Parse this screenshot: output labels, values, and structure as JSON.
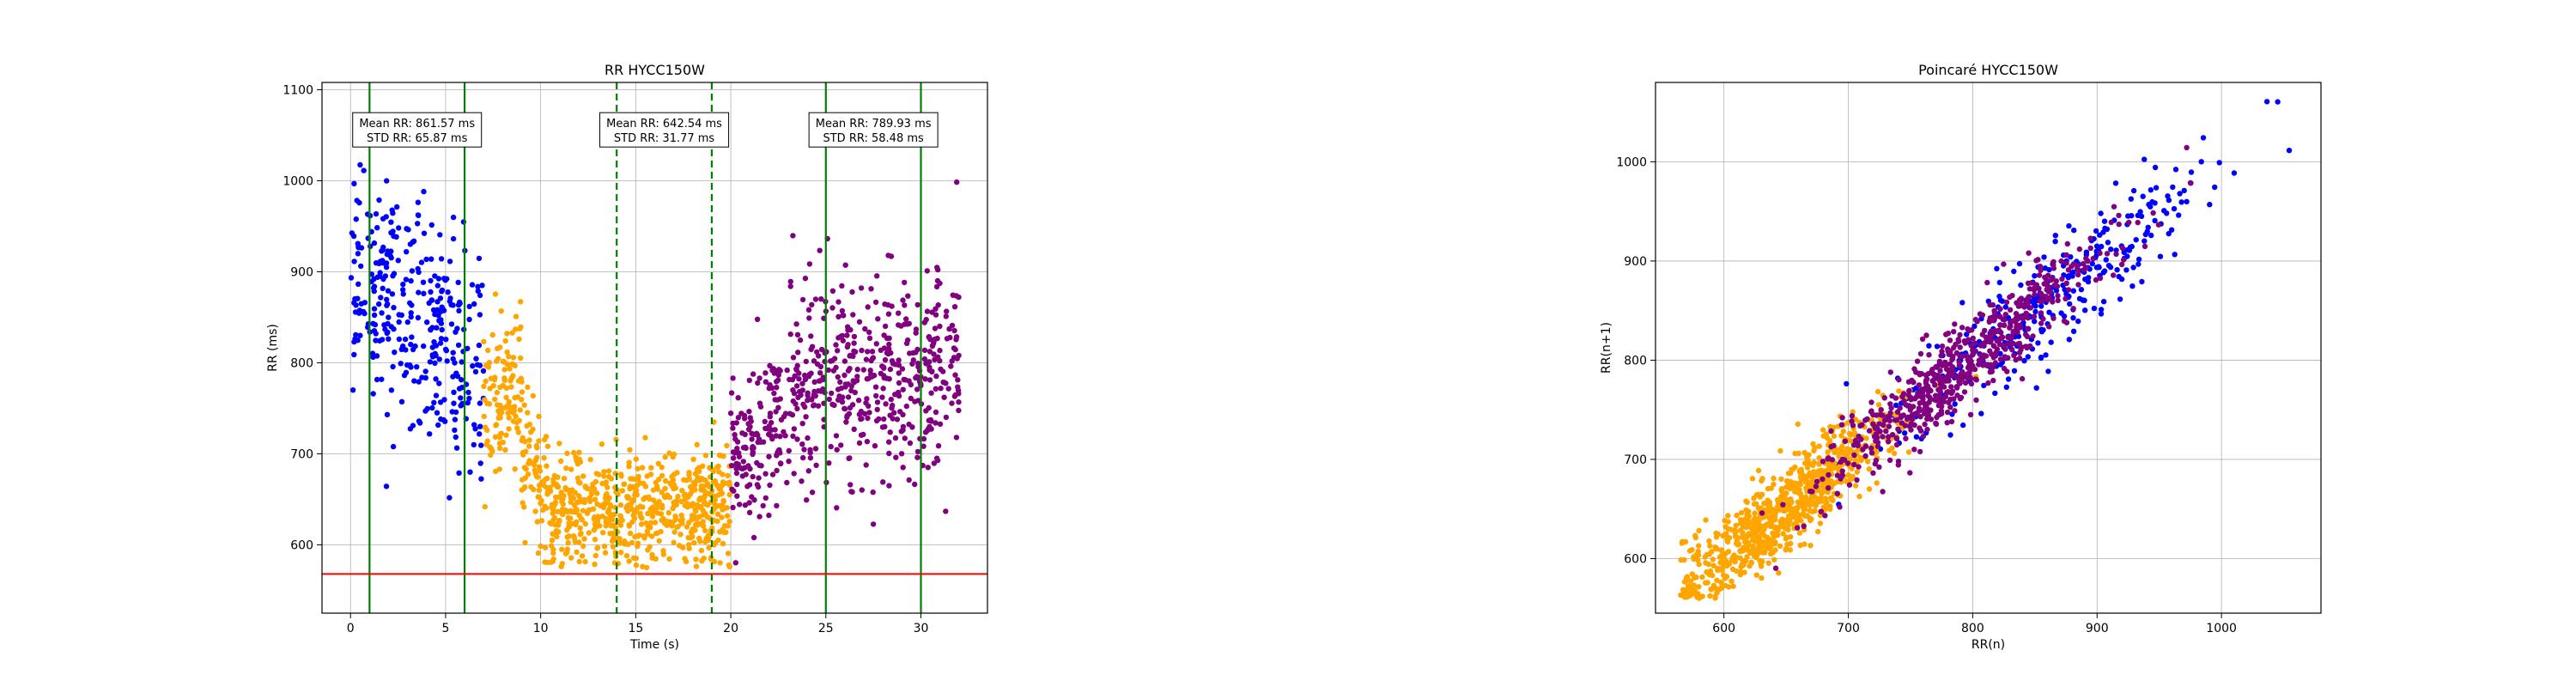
{
  "chart_data": [
    {
      "type": "scatter",
      "title": "RR HYCC150W",
      "xlabel": "Time (s)",
      "ylabel": "RR (ms)",
      "xlim": [
        -1.5,
        33.5
      ],
      "ylim": [
        525,
        1108
      ],
      "xticks": [
        0,
        5,
        10,
        15,
        20,
        25,
        30
      ],
      "yticks": [
        600,
        700,
        800,
        900,
        1000,
        1100
      ],
      "grid": true,
      "threshold_line": {
        "y": 568,
        "color": "#ff0000"
      },
      "vlines": [
        {
          "x": 1,
          "style": "solid",
          "color": "#008000"
        },
        {
          "x": 6,
          "style": "solid",
          "color": "#008000"
        },
        {
          "x": 14,
          "style": "dashed",
          "color": "#008000"
        },
        {
          "x": 19,
          "style": "dashed",
          "color": "#008000"
        },
        {
          "x": 25,
          "style": "solid",
          "color": "#008000"
        },
        {
          "x": 30,
          "style": "solid",
          "color": "#008000"
        }
      ],
      "annotations": [
        {
          "line1": "Mean RR: 861.57 ms",
          "line2": "STD RR: 65.87 ms",
          "x": 3.5,
          "y": 1055
        },
        {
          "line1": "Mean RR: 642.54 ms",
          "line2": "STD RR: 31.77 ms",
          "x": 16.5,
          "y": 1055
        },
        {
          "line1": "Mean RR: 789.93 ms",
          "line2": "STD RR: 58.48 ms",
          "x": 27.5,
          "y": 1055
        }
      ],
      "series": [
        {
          "color": "#0000ff",
          "segments": [
            {
              "t0": 0.0,
              "t1": 3.0,
              "mean0": 875,
              "mean1": 870,
              "sd": 55,
              "n": 150,
              "seed": 11
            },
            {
              "t0": 3.0,
              "t1": 7.0,
              "mean0": 860,
              "mean1": 795,
              "sd": 60,
              "n": 190,
              "seed": 12
            }
          ]
        },
        {
          "color": "#ffa500",
          "segments": [
            {
              "t0": 7.0,
              "t1": 9.0,
              "mean0": 735,
              "mean1": 805,
              "sd": 45,
              "n": 110,
              "seed": 21
            },
            {
              "t0": 9.0,
              "t1": 10.5,
              "mean0": 720,
              "mean1": 650,
              "sd": 35,
              "n": 80,
              "seed": 22
            },
            {
              "t0": 10.5,
              "t1": 20.0,
              "mean0": 635,
              "mean1": 640,
              "sd": 28,
              "n": 620,
              "seed": 23
            }
          ]
        },
        {
          "color": "#800080",
          "segments": [
            {
              "t0": 20.0,
              "t1": 23.0,
              "mean0": 690,
              "mean1": 750,
              "sd": 45,
              "n": 150,
              "seed": 31
            },
            {
              "t0": 23.0,
              "t1": 32.0,
              "mean0": 770,
              "mean1": 795,
              "sd": 55,
              "n": 470,
              "seed": 32
            }
          ]
        }
      ]
    },
    {
      "type": "scatter",
      "title": "Poincaré HYCC150W",
      "xlabel": "RR(n)",
      "ylabel": "RR(n+1)",
      "xlim": [
        545,
        1080
      ],
      "ylim": [
        545,
        1080
      ],
      "xticks": [
        600,
        700,
        800,
        900,
        1000
      ],
      "yticks": [
        600,
        700,
        800,
        900,
        1000
      ],
      "grid": true,
      "series": [
        {
          "color": "#0000ff",
          "n": 330,
          "x_mean": 865,
          "x_sd": 65,
          "diag_sd": 28,
          "seed": 41,
          "x_min": 690,
          "x_max": 1060
        },
        {
          "color": "#ffa500",
          "n": 810,
          "x_mean": 650,
          "x_sd": 45,
          "diag_sd": 22,
          "seed": 42,
          "x_min": 565,
          "x_max": 935
        },
        {
          "color": "#800080",
          "n": 620,
          "x_mean": 790,
          "x_sd": 55,
          "diag_sd": 22,
          "seed": 43,
          "x_min": 600,
          "x_max": 985
        }
      ]
    }
  ]
}
